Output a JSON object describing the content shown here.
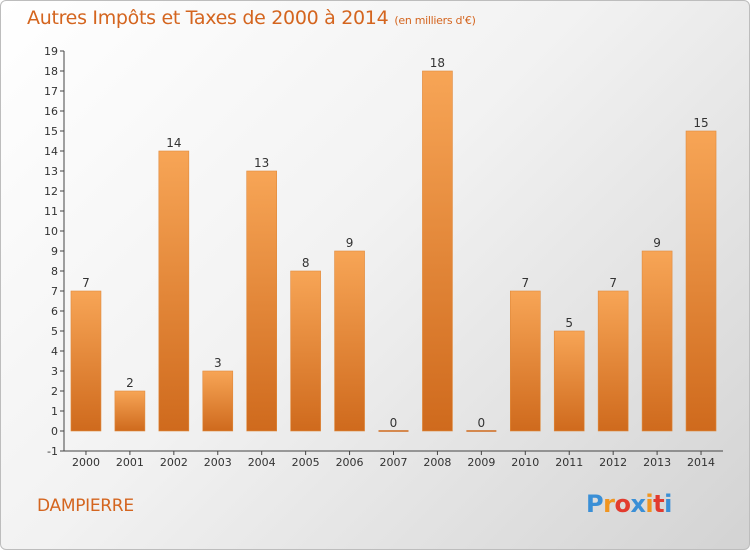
{
  "header": {
    "title": "Autres Impôts et Taxes de 2000 à 2014",
    "unit": "(en milliers d'€)"
  },
  "footer": {
    "commune": "DAMPIERRE",
    "logo_letters": [
      "P",
      "r",
      "o",
      "x",
      "i",
      "t",
      "i"
    ],
    "logo_colors": [
      "#3a8fd6",
      "#f0951f",
      "#e23b2e",
      "#3a8fd6",
      "#f0951f",
      "#e23b2e",
      "#3a8fd6"
    ]
  },
  "chart_data": {
    "type": "bar",
    "categories": [
      "2000",
      "2001",
      "2002",
      "2003",
      "2004",
      "2005",
      "2006",
      "2007",
      "2008",
      "2009",
      "2010",
      "2011",
      "2012",
      "2013",
      "2014"
    ],
    "values": [
      7,
      2,
      14,
      3,
      13,
      8,
      9,
      0,
      18,
      0,
      7,
      5,
      7,
      9,
      15
    ],
    "data_labels": [
      "7",
      "2",
      "14",
      "3",
      "13",
      "8",
      "9",
      "0",
      "18",
      "0",
      "7",
      "5",
      "7",
      "9",
      "15"
    ],
    "ylim": [
      -1,
      19
    ],
    "y_ticks": [
      "-1",
      "0",
      "1",
      "2",
      "3",
      "4",
      "5",
      "6",
      "7",
      "8",
      "9",
      "10",
      "11",
      "12",
      "13",
      "14",
      "15",
      "16",
      "17",
      "18",
      "19"
    ],
    "grid": false,
    "colors": {
      "bar_light": "#f7a556",
      "bar_dark": "#cf6a1d",
      "text": "#333333"
    }
  }
}
